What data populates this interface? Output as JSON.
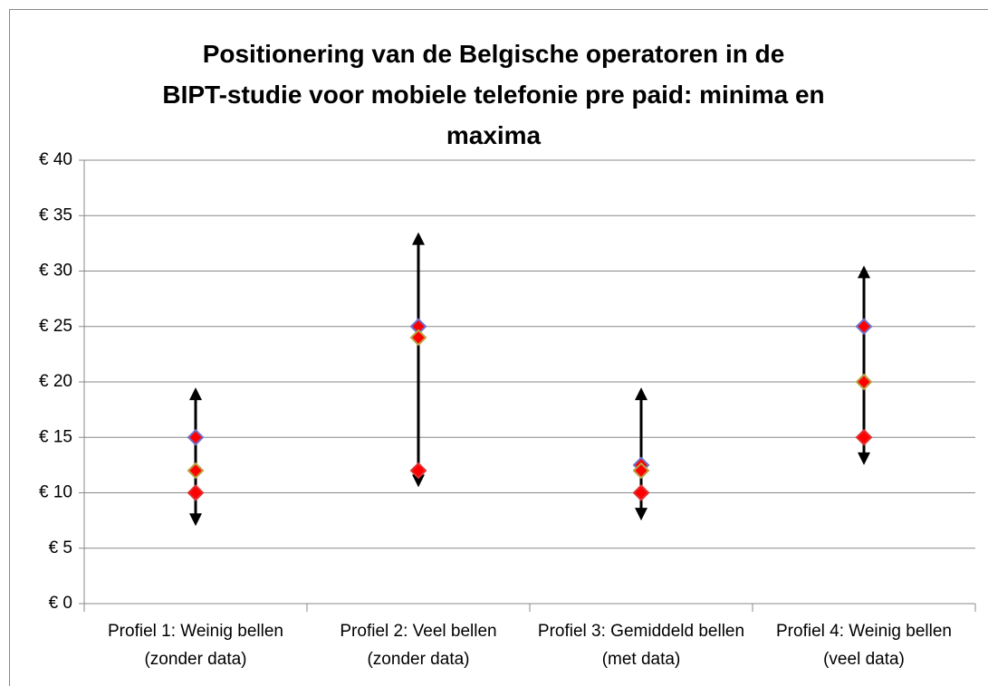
{
  "chart_data": {
    "type": "range",
    "title": "Positionering van de Belgische operatoren in de BIPT-studie voor mobiele telefonie pre paid: minima en maxima",
    "categories": [
      "Profiel 1: Weinig bellen (zonder data)",
      "Profiel 2: Veel bellen (zonder data)",
      "Profiel 3: Gemiddeld bellen (met data)",
      "Profiel 4: Weinig bellen (veel data)"
    ],
    "low": [
      7,
      10.5,
      7.5,
      12.5
    ],
    "high": [
      19.5,
      33.5,
      19.5,
      30.5
    ],
    "range_color": "#000000",
    "series": [
      {
        "color": "#ff0000",
        "edgecolor": "#7070c8",
        "values": [
          15,
          25,
          12.5,
          25
        ]
      },
      {
        "color": "#ff0000",
        "edgecolor": "#b8a040",
        "values": [
          12,
          24,
          12,
          20
        ]
      },
      {
        "color": "#ff0000",
        "edgecolor": "#e03030",
        "values": [
          10,
          12,
          10,
          15
        ]
      }
    ],
    "ylim": [
      0,
      40
    ],
    "yticks": [
      {
        "value": 0,
        "label": "€ 0"
      },
      {
        "value": 5,
        "label": "€ 5"
      },
      {
        "value": 10,
        "label": "€ 10"
      },
      {
        "value": 15,
        "label": "€ 15"
      },
      {
        "value": 20,
        "label": "€ 20"
      },
      {
        "value": 25,
        "label": "€ 25"
      },
      {
        "value": 30,
        "label": "€ 30"
      },
      {
        "value": 35,
        "label": "€ 35"
      },
      {
        "value": 40,
        "label": "€ 40"
      }
    ],
    "grid": true
  }
}
